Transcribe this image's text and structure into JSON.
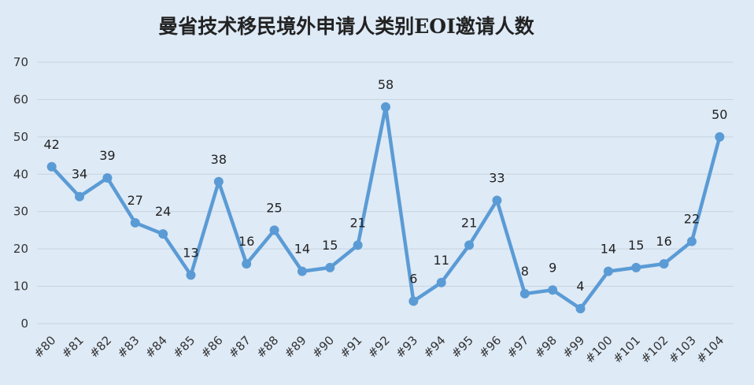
{
  "chart_data": {
    "type": "line",
    "title": "曼省技术移民境外申请人类别EOI邀请人数",
    "xlabel": "",
    "ylabel": "",
    "categories": [
      "#80",
      "#81",
      "#82",
      "#83",
      "#84",
      "#85",
      "#86",
      "#87",
      "#88",
      "#89",
      "#90",
      "#91",
      "#92",
      "#93",
      "#94",
      "#95",
      "#96",
      "#97",
      "#98",
      "#99",
      "#100",
      "#101",
      "#102",
      "#103",
      "#104"
    ],
    "series": [
      {
        "values": [
          42,
          34,
          39,
          27,
          24,
          13,
          38,
          16,
          25,
          14,
          15,
          21,
          58,
          6,
          11,
          21,
          33,
          8,
          9,
          4,
          14,
          15,
          16,
          22,
          50
        ],
        "color": "#5b9bd5"
      }
    ],
    "ylim": [
      0,
      70
    ],
    "yticks": [
      "0",
      "10",
      "20",
      "30",
      "40",
      "50",
      "60",
      "70"
    ],
    "grid": true,
    "legend": "none",
    "data_labels": true
  }
}
